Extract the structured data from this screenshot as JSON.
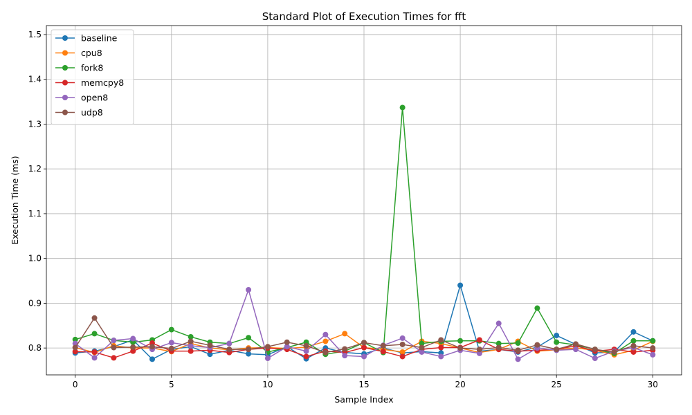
{
  "chart_data": {
    "type": "line",
    "title": "Standard Plot of Execution Times for fft",
    "xlabel": "Sample Index",
    "ylabel": "Execution Time (ms)",
    "xlim": [
      -1.5,
      31.5
    ],
    "ylim": [
      0.74,
      1.52
    ],
    "xticks": [
      0,
      5,
      10,
      15,
      20,
      25,
      30
    ],
    "yticks": [
      0.8,
      0.9,
      1.0,
      1.1,
      1.2,
      1.3,
      1.4,
      1.5
    ],
    "ytick_labels": [
      "0.8",
      "0.9",
      "1.0",
      "1.1",
      "1.2",
      "1.3",
      "1.4",
      "1.5"
    ],
    "grid": true,
    "legend_position": "top-left",
    "x": [
      0,
      1,
      2,
      3,
      4,
      5,
      6,
      7,
      8,
      9,
      10,
      11,
      12,
      13,
      14,
      15,
      16,
      17,
      18,
      19,
      20,
      21,
      22,
      23,
      24,
      25,
      26,
      27,
      28,
      29,
      30
    ],
    "series": [
      {
        "name": "baseline",
        "color": "#1f77b4",
        "values": [
          0.789,
          0.793,
          0.803,
          0.818,
          0.775,
          0.797,
          0.803,
          0.786,
          0.795,
          0.787,
          0.785,
          0.803,
          0.776,
          0.8,
          0.79,
          0.787,
          0.8,
          0.789,
          0.792,
          0.789,
          0.94,
          0.793,
          0.797,
          0.791,
          0.802,
          0.828,
          0.808,
          0.789,
          0.791,
          0.836,
          0.816
        ]
      },
      {
        "name": "cpu8",
        "color": "#ff7f0e",
        "values": [
          0.801,
          0.79,
          0.805,
          0.8,
          0.8,
          0.792,
          0.81,
          0.8,
          0.796,
          0.8,
          0.801,
          0.799,
          0.802,
          0.815,
          0.832,
          0.801,
          0.797,
          0.791,
          0.815,
          0.81,
          0.8,
          0.79,
          0.797,
          0.815,
          0.793,
          0.796,
          0.8,
          0.795,
          0.785,
          0.795,
          0.815
        ]
      },
      {
        "name": "fork8",
        "color": "#2ca02c",
        "values": [
          0.819,
          0.832,
          0.817,
          0.813,
          0.818,
          0.841,
          0.825,
          0.813,
          0.81,
          0.823,
          0.791,
          0.801,
          0.813,
          0.786,
          0.793,
          0.812,
          0.79,
          1.337,
          0.81,
          0.815,
          0.816,
          0.816,
          0.81,
          0.811,
          0.889,
          0.813,
          0.807,
          0.797,
          0.788,
          0.816,
          0.816
        ]
      },
      {
        "name": "memcpy8",
        "color": "#d62728",
        "values": [
          0.792,
          0.791,
          0.778,
          0.793,
          0.811,
          0.793,
          0.793,
          0.795,
          0.79,
          0.797,
          0.8,
          0.797,
          0.781,
          0.793,
          0.79,
          0.801,
          0.792,
          0.781,
          0.797,
          0.801,
          0.801,
          0.818,
          0.797,
          0.793,
          0.795,
          0.797,
          0.805,
          0.793,
          0.797,
          0.791,
          0.795
        ]
      },
      {
        "name": "open8",
        "color": "#9467bd",
        "values": [
          0.81,
          0.778,
          0.817,
          0.821,
          0.797,
          0.812,
          0.805,
          0.801,
          0.81,
          0.93,
          0.777,
          0.803,
          0.793,
          0.83,
          0.783,
          0.781,
          0.806,
          0.822,
          0.791,
          0.781,
          0.795,
          0.788,
          0.855,
          0.775,
          0.8,
          0.795,
          0.797,
          0.777,
          0.793,
          0.801,
          0.785
        ]
      },
      {
        "name": "udp8",
        "color": "#8c564b",
        "values": [
          0.801,
          0.867,
          0.801,
          0.802,
          0.803,
          0.799,
          0.815,
          0.806,
          0.797,
          0.797,
          0.803,
          0.813,
          0.805,
          0.79,
          0.798,
          0.812,
          0.805,
          0.808,
          0.801,
          0.818,
          0.8,
          0.797,
          0.801,
          0.795,
          0.807,
          0.797,
          0.809,
          0.797,
          0.791,
          0.805,
          0.8
        ]
      }
    ]
  }
}
